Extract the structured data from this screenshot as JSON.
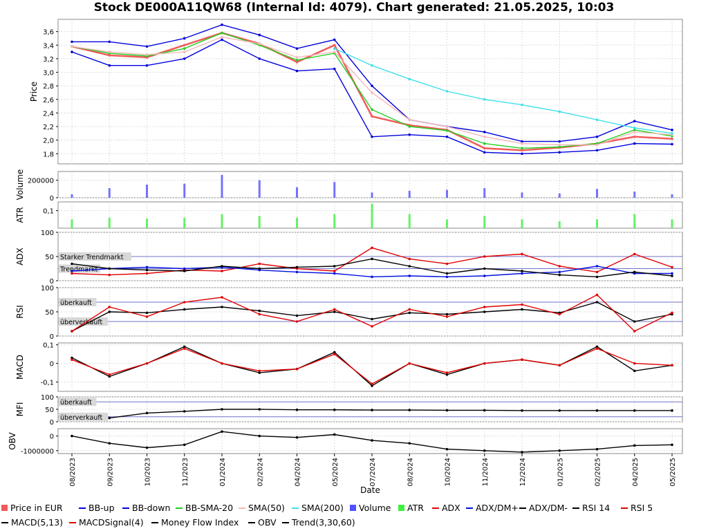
{
  "title": "Stock DE000A11QW68 (Internal Id: 4079). Chart generated: 21.05.2025, 10:03",
  "colors": {
    "price": "#f25a5a",
    "bb": "#0000dd",
    "bb_sma20": "#20d020",
    "sma50": "#f4b8b8",
    "sma200": "#40e0e8",
    "volume": "#5050ff",
    "atr": "#40f040",
    "adx": "#e00000",
    "dm_plus": "#0010e0",
    "dm_minus": "#000000",
    "rsi5": "#e00000",
    "ref_line": "#7070c8",
    "grid": "#dcdcdc"
  },
  "chart_data": [
    {
      "type": "line",
      "panel": "price",
      "ylabel": "Price",
      "ylim": [
        1.65,
        3.78
      ],
      "yticks": [
        "1,8",
        "2,0",
        "2,2",
        "2,4",
        "2,6",
        "2,8",
        "3,0",
        "3,2",
        "3,4",
        "3,6"
      ],
      "x": [
        "08/2023",
        "09/2023",
        "10/2023",
        "11/2023",
        "01/2024",
        "02/2024",
        "04/2024",
        "05/2024",
        "07/2024",
        "08/2024",
        "10/2024",
        "11/2024",
        "12/2024",
        "01/2025",
        "02/2025",
        "04/2025",
        "05/2025"
      ],
      "xlabel": "Date",
      "series": [
        {
          "name": "Price in EUR",
          "color_key": "price",
          "values": [
            3.38,
            3.25,
            3.22,
            3.4,
            3.58,
            3.42,
            3.15,
            3.4,
            2.35,
            2.22,
            2.15,
            1.88,
            1.85,
            1.89,
            1.95,
            2.05,
            2.02
          ]
        },
        {
          "name": "BB-up",
          "color_key": "bb",
          "values": [
            3.45,
            3.45,
            3.38,
            3.5,
            3.7,
            3.55,
            3.35,
            3.48,
            2.8,
            2.3,
            2.2,
            2.12,
            1.98,
            1.98,
            2.05,
            2.28,
            2.15
          ]
        },
        {
          "name": "BB-down",
          "color_key": "bb",
          "values": [
            3.3,
            3.1,
            3.1,
            3.2,
            3.48,
            3.2,
            3.02,
            3.05,
            2.05,
            2.08,
            2.05,
            1.82,
            1.8,
            1.82,
            1.85,
            1.95,
            1.94
          ]
        },
        {
          "name": "BB-SMA-20",
          "color_key": "bb_sma20",
          "values": [
            3.38,
            3.28,
            3.24,
            3.35,
            3.58,
            3.4,
            3.18,
            3.28,
            2.45,
            2.2,
            2.14,
            1.95,
            1.88,
            1.9,
            1.95,
            2.15,
            2.06
          ]
        },
        {
          "name": "SMA(50)",
          "color_key": "sma50",
          "values": [
            3.38,
            3.3,
            3.26,
            3.3,
            3.52,
            3.42,
            3.22,
            3.3,
            2.7,
            2.3,
            2.2,
            2.05,
            1.95,
            1.93,
            1.93,
            2.12,
            2.08
          ]
        },
        {
          "name": "SMA(200)",
          "color_key": "sma200",
          "values": [
            null,
            null,
            null,
            null,
            null,
            null,
            null,
            3.35,
            3.1,
            2.9,
            2.72,
            2.6,
            2.52,
            2.42,
            2.3,
            2.18,
            2.1
          ]
        }
      ]
    },
    {
      "type": "bar",
      "panel": "volume",
      "ylabel": "Volume",
      "yticks": [
        "0",
        "200000"
      ],
      "ylim": [
        0,
        300000
      ],
      "series": [
        {
          "name": "Volume",
          "color_key": "volume",
          "values": [
            40000,
            110000,
            150000,
            160000,
            260000,
            200000,
            120000,
            180000,
            60000,
            80000,
            90000,
            110000,
            60000,
            50000,
            100000,
            70000,
            40000
          ]
        }
      ]
    },
    {
      "type": "bar",
      "panel": "atr",
      "ylabel": "ATR",
      "yticks": [
        "0,1"
      ],
      "ylim": [
        0,
        0.15
      ],
      "series": [
        {
          "name": "ATR",
          "color_key": "atr",
          "values": [
            0.05,
            0.06,
            0.055,
            0.06,
            0.08,
            0.07,
            0.06,
            0.08,
            0.14,
            0.08,
            0.05,
            0.07,
            0.05,
            0.04,
            0.05,
            0.08,
            0.05
          ]
        }
      ]
    },
    {
      "type": "line",
      "panel": "adx",
      "ylabel": "ADX",
      "ylim": [
        0,
        100
      ],
      "yticks": [
        "0",
        "50",
        "100"
      ],
      "annotations": [
        "Starker Trendmarkt",
        "Trendmarkt"
      ],
      "ref_values": [
        50,
        25
      ],
      "series": [
        {
          "name": "ADX",
          "color_key": "adx",
          "values": [
            15,
            12,
            15,
            22,
            20,
            35,
            25,
            20,
            68,
            45,
            35,
            50,
            55,
            30,
            18,
            55,
            28
          ]
        },
        {
          "name": "ADX/DM+",
          "color_key": "dm_plus",
          "values": [
            20,
            25,
            28,
            25,
            28,
            22,
            18,
            15,
            8,
            10,
            8,
            10,
            15,
            18,
            30,
            15,
            15
          ]
        },
        {
          "name": "ADX/DM-",
          "color_key": "dm_minus",
          "values": [
            35,
            25,
            22,
            20,
            30,
            25,
            28,
            30,
            45,
            30,
            15,
            25,
            20,
            12,
            8,
            18,
            10
          ]
        }
      ]
    },
    {
      "type": "line",
      "panel": "rsi",
      "ylabel": "RSI",
      "ylim": [
        0,
        100
      ],
      "yticks": [
        "0",
        "50",
        "100"
      ],
      "annotations": [
        "überkauft",
        "überverkauft"
      ],
      "ref_values": [
        70,
        30
      ],
      "series": [
        {
          "name": "RSI 14",
          "color_key": "dm_minus",
          "values": [
            10,
            50,
            48,
            55,
            60,
            52,
            42,
            50,
            35,
            48,
            45,
            50,
            55,
            48,
            70,
            30,
            45
          ]
        },
        {
          "name": "RSI 5",
          "color_key": "rsi5",
          "values": [
            10,
            60,
            40,
            70,
            80,
            45,
            30,
            55,
            20,
            55,
            40,
            60,
            65,
            45,
            85,
            10,
            48
          ]
        }
      ]
    },
    {
      "type": "line",
      "panel": "macd",
      "ylabel": "MACD",
      "ylim": [
        -0.15,
        0.11
      ],
      "yticks": [
        "-0,1",
        "0",
        "0,1"
      ],
      "series": [
        {
          "name": "MACD(5,13)",
          "color_key": "dm_minus",
          "values": [
            0.03,
            -0.07,
            0.0,
            0.09,
            0.0,
            -0.05,
            -0.03,
            0.06,
            -0.12,
            0.0,
            -0.06,
            0.0,
            0.02,
            -0.01,
            0.09,
            -0.04,
            -0.01
          ]
        },
        {
          "name": "MACDSignal(4)",
          "color_key": "rsi5",
          "values": [
            0.02,
            -0.06,
            0.0,
            0.08,
            0.0,
            -0.04,
            -0.03,
            0.05,
            -0.11,
            0.0,
            -0.05,
            0.0,
            0.02,
            -0.01,
            0.08,
            0.0,
            -0.01
          ]
        }
      ]
    },
    {
      "type": "line",
      "panel": "mfi",
      "ylabel": "MFI",
      "ylim": [
        0,
        100
      ],
      "yticks": [
        "0",
        "50",
        "100"
      ],
      "annotations": [
        "überkauft",
        "überverkauft"
      ],
      "ref_values": [
        80,
        20
      ],
      "series": [
        {
          "name": "Money Flow Index",
          "color_key": "dm_minus",
          "values": [
            null,
            15,
            35,
            42,
            50,
            50,
            48,
            48,
            47,
            47,
            46,
            46,
            45,
            45,
            45,
            45,
            45
          ]
        }
      ]
    },
    {
      "type": "line",
      "panel": "obv",
      "ylabel": "OBV",
      "ylim": [
        -1200000,
        500000
      ],
      "yticks": [
        "-1000000",
        "0"
      ],
      "series": [
        {
          "name": "OBV",
          "color_key": "dm_minus",
          "values": [
            0,
            -500000,
            -800000,
            -600000,
            300000,
            0,
            -100000,
            100000,
            -300000,
            -500000,
            -900000,
            -1000000,
            -1100000,
            -1000000,
            -900000,
            -650000,
            -600000
          ]
        }
      ]
    }
  ],
  "legend": [
    {
      "label": "Price in EUR",
      "kind": "box",
      "color_key": "price"
    },
    {
      "label": "BB-up",
      "kind": "line",
      "color_key": "bb"
    },
    {
      "label": "BB-down",
      "kind": "line",
      "color_key": "bb"
    },
    {
      "label": "BB-SMA-20",
      "kind": "line",
      "color_key": "bb_sma20"
    },
    {
      "label": "SMA(50)",
      "kind": "line",
      "color_key": "sma50"
    },
    {
      "label": "SMA(200)",
      "kind": "line",
      "color_key": "sma200"
    },
    {
      "label": "Volume",
      "kind": "box",
      "color_key": "volume"
    },
    {
      "label": "ATR",
      "kind": "box",
      "color_key": "atr"
    },
    {
      "label": "ADX",
      "kind": "marker",
      "color_key": "adx"
    },
    {
      "label": "ADX/DM+",
      "kind": "marker",
      "color_key": "dm_plus"
    },
    {
      "label": "ADX/DM-",
      "kind": "marker",
      "color_key": "dm_minus"
    },
    {
      "label": "RSI 14",
      "kind": "marker",
      "color_key": "dm_minus"
    },
    {
      "label": "RSI 5",
      "kind": "marker",
      "color_key": "rsi5"
    },
    {
      "label": "MACD(5,13)",
      "kind": "marker",
      "color_key": "dm_minus"
    },
    {
      "label": "MACDSignal(4)",
      "kind": "marker",
      "color_key": "rsi5"
    },
    {
      "label": "Money Flow Index",
      "kind": "marker",
      "color_key": "dm_minus"
    },
    {
      "label": "OBV",
      "kind": "marker",
      "color_key": "dm_minus"
    },
    {
      "label": "Trend(3,30,60)",
      "kind": "line",
      "color_key": "dm_minus"
    }
  ]
}
